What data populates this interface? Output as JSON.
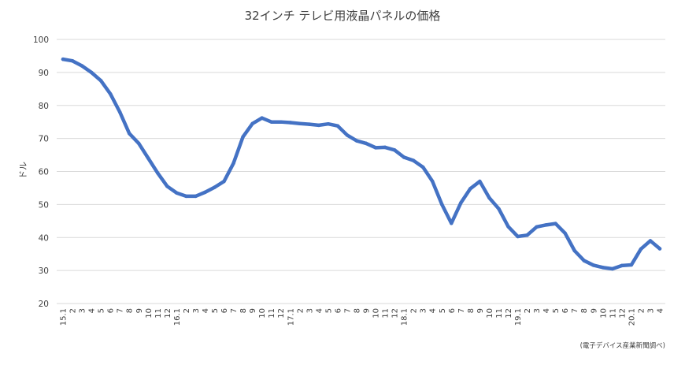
{
  "chart_data": {
    "type": "line",
    "title": "32インチ テレビ用液晶パネルの価格",
    "ylabel": "ドル",
    "xlabel": "",
    "ylim": [
      20,
      100
    ],
    "yticks": [
      20,
      30,
      40,
      50,
      60,
      70,
      80,
      90,
      100
    ],
    "grid": true,
    "legend": "none",
    "source_note": "(電子デバイス産業新聞調べ)",
    "colors": {
      "line": "#4472C4",
      "grid": "#D9D9D9",
      "text": "#404040"
    },
    "categories": [
      "15.1",
      "2",
      "3",
      "4",
      "5",
      "6",
      "7",
      "8",
      "9",
      "10",
      "11",
      "12",
      "16.1",
      "2",
      "3",
      "4",
      "5",
      "6",
      "7",
      "8",
      "9",
      "10",
      "11",
      "12",
      "17.1",
      "2",
      "3",
      "4",
      "5",
      "6",
      "7",
      "8",
      "9",
      "10",
      "11",
      "12",
      "18.1",
      "2",
      "3",
      "4",
      "5",
      "6",
      "7",
      "8",
      "9",
      "10",
      "11",
      "12",
      "19.1",
      "2",
      "3",
      "4",
      "5",
      "6",
      "7",
      "8",
      "9",
      "10",
      "11",
      "12",
      "20.1",
      "2",
      "3",
      "4"
    ],
    "series": [
      {
        "values": [
          94,
          93.5,
          92,
          90,
          87.5,
          83.5,
          78,
          71.5,
          68.5,
          64,
          59.5,
          55.5,
          53.5,
          52.5,
          52.5,
          53.7,
          55.2,
          57,
          62.5,
          70.5,
          74.5,
          76.2,
          75,
          75,
          74.8,
          74.5,
          74.3,
          74,
          74.4,
          73.8,
          71,
          69.3,
          68.5,
          67.2,
          67.3,
          66.5,
          64.3,
          63.3,
          61.3,
          57,
          50,
          44.3,
          50.5,
          54.8,
          57,
          52,
          48.7,
          43.3,
          40.3,
          40.7,
          43.2,
          43.8,
          44.2,
          41.3,
          36,
          33,
          31.6,
          30.9,
          30.5,
          31.5,
          31.7,
          36.5,
          39,
          36.6
        ]
      }
    ]
  }
}
